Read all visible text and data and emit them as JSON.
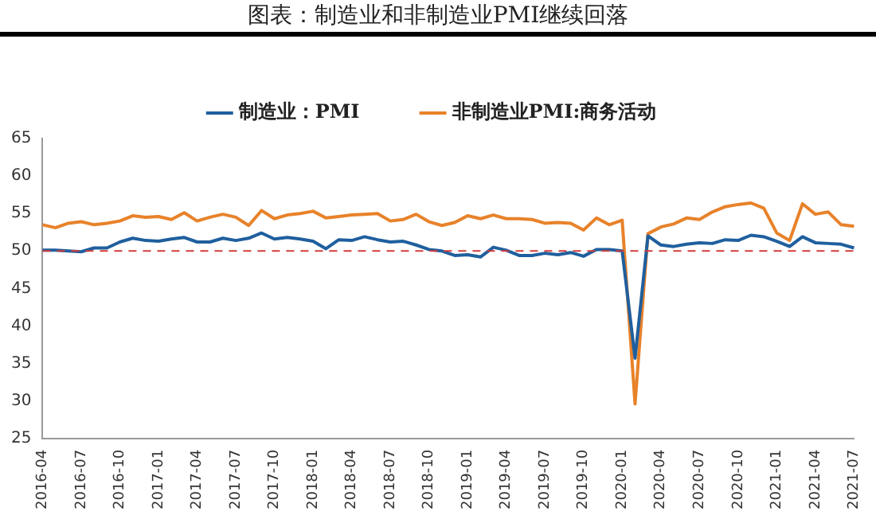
{
  "chart_data": {
    "type": "line",
    "title": "图表：制造业和非制造业PMI继续回落",
    "categories": [
      "2016-04",
      null,
      null,
      "2016-07",
      null,
      null,
      "2016-10",
      null,
      null,
      "2017-01",
      null,
      null,
      "2017-04",
      null,
      null,
      "2017-07",
      null,
      null,
      "2017-10",
      null,
      null,
      "2018-01",
      null,
      null,
      "2018-04",
      null,
      null,
      "2018-07",
      null,
      null,
      "2018-10",
      null,
      null,
      "2019-01",
      null,
      null,
      "2019-04",
      null,
      null,
      "2019-07",
      null,
      null,
      "2019-10",
      null,
      null,
      "2020-01",
      null,
      null,
      "2020-04",
      null,
      null,
      "2020-07",
      null,
      null,
      "2020-10",
      null,
      null,
      "2021-01",
      null,
      null,
      "2021-04",
      null,
      null,
      "2021-07"
    ],
    "series": [
      {
        "name": "制造业：PMI",
        "color": "#1f5f9e",
        "values": [
          50.1,
          50.1,
          50.0,
          49.9,
          50.4,
          50.4,
          51.2,
          51.7,
          51.4,
          51.3,
          51.6,
          51.8,
          51.2,
          51.2,
          51.7,
          51.4,
          51.7,
          52.4,
          51.6,
          51.8,
          51.6,
          51.3,
          50.3,
          51.5,
          51.4,
          51.9,
          51.5,
          51.2,
          51.3,
          50.8,
          50.2,
          50.0,
          49.4,
          49.5,
          49.2,
          50.5,
          50.1,
          49.4,
          49.4,
          49.7,
          49.5,
          49.8,
          49.3,
          50.2,
          50.2,
          50.0,
          35.7,
          52.0,
          50.8,
          50.6,
          50.9,
          51.1,
          51.0,
          51.5,
          51.4,
          52.1,
          51.9,
          51.3,
          50.6,
          51.9,
          51.1,
          51.0,
          50.9,
          50.4
        ]
      },
      {
        "name": "非制造业PMI:商务活动",
        "color": "#e8822a",
        "values": [
          53.5,
          53.1,
          53.7,
          53.9,
          53.5,
          53.7,
          54.0,
          54.7,
          54.5,
          54.6,
          54.2,
          55.1,
          54.0,
          54.5,
          54.9,
          54.5,
          53.4,
          55.4,
          54.3,
          54.8,
          55.0,
          55.3,
          54.4,
          54.6,
          54.8,
          54.9,
          55.0,
          54.0,
          54.2,
          54.9,
          53.9,
          53.4,
          53.8,
          54.7,
          54.3,
          54.8,
          54.3,
          54.3,
          54.2,
          53.7,
          53.8,
          53.7,
          52.8,
          54.4,
          53.5,
          54.1,
          29.6,
          52.3,
          53.2,
          53.6,
          54.4,
          54.2,
          55.2,
          55.9,
          56.2,
          56.4,
          55.7,
          52.4,
          51.4,
          56.3,
          54.9,
          55.2,
          53.5,
          53.3
        ]
      }
    ],
    "ylim": [
      25,
      65
    ],
    "yticks": [
      25,
      30,
      35,
      40,
      45,
      50,
      55,
      60,
      65
    ],
    "ref_lines": [
      {
        "axis": "y",
        "value": 50,
        "color": "#d23c3c",
        "line_style": "dashed"
      }
    ],
    "legend": "top"
  }
}
